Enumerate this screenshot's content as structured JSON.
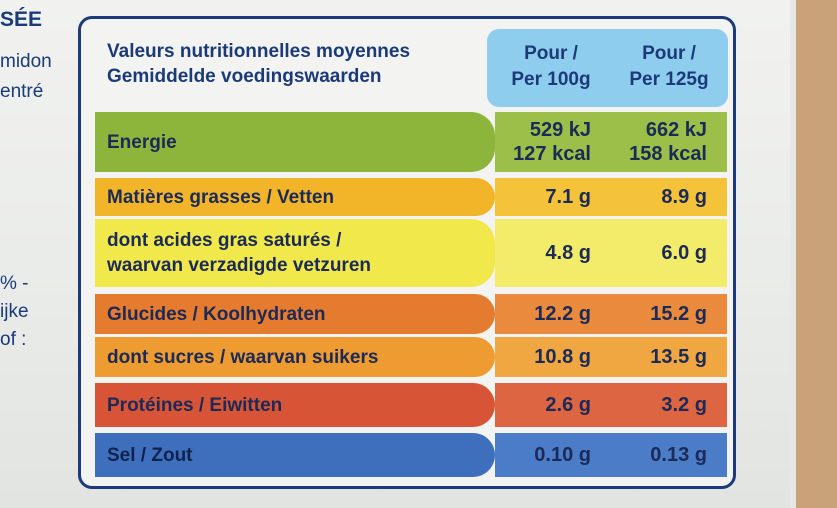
{
  "side_text": {
    "line1": "SÉE",
    "line2": "midon",
    "line3": "entré",
    "line4": "% -",
    "line5": "ijke",
    "line6": "of :"
  },
  "header": {
    "title_fr": "Valeurs nutritionnelles moyennes",
    "title_nl": "Gemiddelde voedingswaarden",
    "col1_line1": "Pour /",
    "col1_line2": "Per 100g",
    "col2_line1": "Pour /",
    "col2_line2": "Per 125g"
  },
  "rows": [
    {
      "label": "Energie",
      "label2": "",
      "v1a": "529 kJ",
      "v1b": "127 kcal",
      "v2a": "662 kJ",
      "v2b": "158 kcal"
    },
    {
      "label": "Matières grasses / Vetten",
      "label2": "",
      "v1a": "7.1 g",
      "v1b": "",
      "v2a": "8.9 g",
      "v2b": ""
    },
    {
      "label": "dont acides gras saturés /",
      "label2": "waarvan verzadigde vetzuren",
      "v1a": "4.8 g",
      "v1b": "",
      "v2a": "6.0 g",
      "v2b": ""
    },
    {
      "label": "Glucides / Koolhydraten",
      "label2": "",
      "v1a": "12.2 g",
      "v1b": "",
      "v2a": "15.2 g",
      "v2b": ""
    },
    {
      "label": "dont sucres / waarvan suikers",
      "label2": "",
      "v1a": "10.8 g",
      "v1b": "",
      "v2a": "13.5 g",
      "v2b": ""
    },
    {
      "label": "Protéines / Eiwitten",
      "label2": "",
      "v1a": "2.6 g",
      "v1b": "",
      "v2a": "3.2 g",
      "v2b": ""
    },
    {
      "label": "Sel / Zout",
      "label2": "",
      "v1a": "0.10 g",
      "v1b": "",
      "v2a": "0.13 g",
      "v2b": ""
    }
  ]
}
